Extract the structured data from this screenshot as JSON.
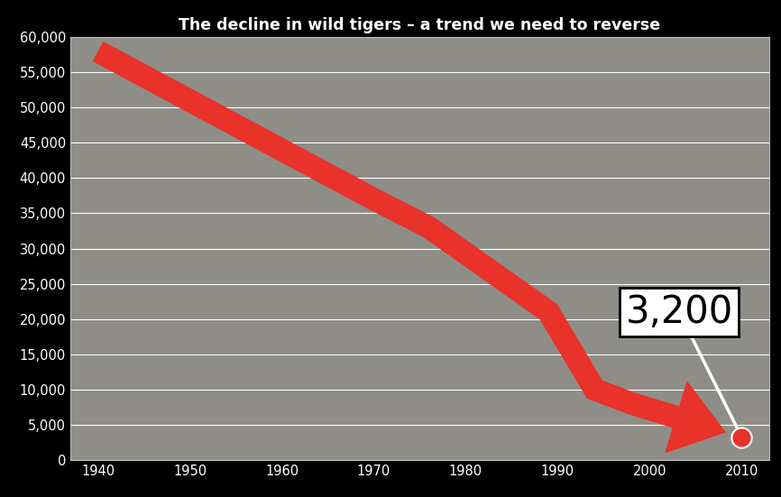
{
  "chart_data": {
    "type": "line",
    "title": "The decline in wild tigers – a trend we need to reverse",
    "x": [
      1940,
      1950,
      1960,
      1970,
      1976,
      1989,
      1994,
      1998,
      2003,
      2010
    ],
    "values": [
      58000,
      51000,
      44000,
      37000,
      33000,
      21000,
      10000,
      8000,
      6000,
      3200
    ],
    "color": "#e8322a",
    "xlim": [
      1937,
      2013
    ],
    "xticks": [
      1940,
      1950,
      1960,
      1970,
      1980,
      1990,
      2000,
      2010
    ],
    "ylim": [
      0,
      60000
    ],
    "yticks": [
      0,
      {
        "value": 5000,
        "label": "5,000"
      },
      {
        "value": 10000,
        "label": "10,000"
      },
      {
        "value": 15000,
        "label": "15,000"
      },
      {
        "value": 20000,
        "label": "20,000"
      },
      {
        "value": 25000,
        "label": "25,000"
      },
      {
        "value": 30000,
        "label": "30,000"
      },
      {
        "value": 35000,
        "label": "35,000"
      },
      {
        "value": 40000,
        "label": "40,000"
      },
      {
        "value": 45000,
        "label": "45,000"
      },
      {
        "value": 50000,
        "label": "50,000"
      },
      {
        "value": 55000,
        "label": "55,000"
      },
      {
        "value": 60000,
        "label": "60,000"
      }
    ],
    "grid": true,
    "annotation": {
      "text": "3,200",
      "x": 2010,
      "y": 3200
    }
  }
}
